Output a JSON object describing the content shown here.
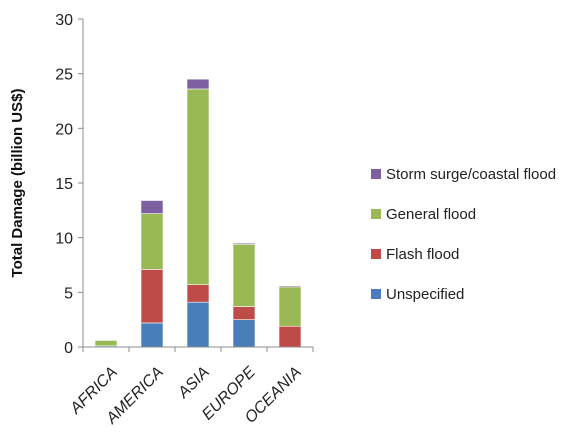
{
  "chart_data": {
    "type": "bar",
    "stacked": true,
    "title": "",
    "xlabel": "",
    "ylabel": "Total Damage (billion US$)",
    "ylim": [
      0,
      30
    ],
    "yticks": [
      "0",
      "5",
      "10",
      "15",
      "20",
      "25",
      "30"
    ],
    "grid": false,
    "legend_position": "right",
    "categories": [
      "AFRICA",
      "AMERICA",
      "ASIA",
      "EUROPE",
      "OCEANIA"
    ],
    "series": [
      {
        "name": "Unspecified",
        "color": "#4A7EBB",
        "values": [
          0.1,
          2.2,
          4.1,
          2.5,
          0.0
        ]
      },
      {
        "name": "Flash flood",
        "color": "#BE4B48",
        "values": [
          0.0,
          4.9,
          1.6,
          1.2,
          1.9
        ]
      },
      {
        "name": "General flood",
        "color": "#98B954",
        "values": [
          0.5,
          5.1,
          17.9,
          5.7,
          3.6
        ]
      },
      {
        "name": "Storm surge/coastal flood",
        "color": "#7D60A0",
        "values": [
          0.0,
          1.2,
          0.9,
          0.1,
          0.1
        ]
      }
    ],
    "legend_order": [
      "Storm surge/coastal flood",
      "General flood",
      "Flash flood",
      "Unspecified"
    ]
  }
}
